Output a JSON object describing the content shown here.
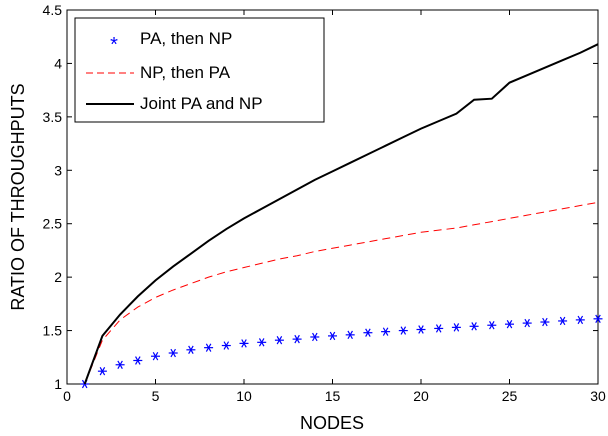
{
  "chart_data": {
    "type": "line",
    "xlabel": "NODES",
    "ylabel": "RATIO OF THROUGHPUTS",
    "xlim": [
      0,
      30
    ],
    "ylim": [
      1,
      4.5
    ],
    "xticks": [
      0,
      5,
      10,
      15,
      20,
      25,
      30
    ],
    "yticks": [
      1,
      1.5,
      2,
      2.5,
      3,
      3.5,
      4,
      4.5
    ],
    "xtick_labels": [
      "0",
      "5",
      "10",
      "15",
      "20",
      "25",
      "30"
    ],
    "ytick_labels": [
      "1",
      "1.5",
      "2",
      "2.5",
      "3",
      "3.5",
      "4",
      "4.5"
    ],
    "grid": false,
    "legend_position": "top-left",
    "series": [
      {
        "name": "PA, then NP",
        "style": "markers",
        "color": "#0000ff",
        "x": [
          1,
          2,
          3,
          4,
          5,
          6,
          7,
          8,
          9,
          10,
          11,
          12,
          13,
          14,
          15,
          16,
          17,
          18,
          19,
          20,
          21,
          22,
          23,
          24,
          25,
          26,
          27,
          28,
          29,
          30
        ],
        "y": [
          1.0,
          1.12,
          1.18,
          1.22,
          1.26,
          1.29,
          1.32,
          1.34,
          1.36,
          1.38,
          1.39,
          1.41,
          1.42,
          1.44,
          1.45,
          1.46,
          1.48,
          1.49,
          1.5,
          1.51,
          1.52,
          1.53,
          1.54,
          1.55,
          1.56,
          1.57,
          1.58,
          1.59,
          1.6,
          1.61
        ]
      },
      {
        "name": "NP, then PA",
        "style": "dashed",
        "color": "#ff0000",
        "x": [
          1,
          2,
          3,
          4,
          5,
          6,
          7,
          8,
          9,
          10,
          11,
          12,
          13,
          14,
          15,
          16,
          17,
          18,
          19,
          20,
          21,
          22,
          23,
          24,
          25,
          26,
          27,
          28,
          29,
          30
        ],
        "y": [
          1.0,
          1.41,
          1.6,
          1.72,
          1.81,
          1.88,
          1.94,
          2.0,
          2.05,
          2.09,
          2.13,
          2.17,
          2.2,
          2.24,
          2.27,
          2.3,
          2.33,
          2.36,
          2.39,
          2.42,
          2.44,
          2.46,
          2.49,
          2.52,
          2.55,
          2.58,
          2.61,
          2.64,
          2.67,
          2.7
        ]
      },
      {
        "name": "Joint PA and NP",
        "style": "solid",
        "color": "#000000",
        "x": [
          1,
          2,
          3,
          4,
          5,
          6,
          7,
          8,
          9,
          10,
          11,
          12,
          13,
          14,
          15,
          16,
          17,
          18,
          19,
          20,
          21,
          22,
          23,
          24,
          25,
          26,
          27,
          28,
          29,
          30
        ],
        "y": [
          1.0,
          1.45,
          1.65,
          1.82,
          1.97,
          2.1,
          2.22,
          2.34,
          2.45,
          2.55,
          2.64,
          2.73,
          2.82,
          2.91,
          2.99,
          3.07,
          3.15,
          3.23,
          3.31,
          3.39,
          3.46,
          3.53,
          3.66,
          3.67,
          3.82,
          3.89,
          3.96,
          4.03,
          4.1,
          4.18
        ]
      }
    ]
  }
}
